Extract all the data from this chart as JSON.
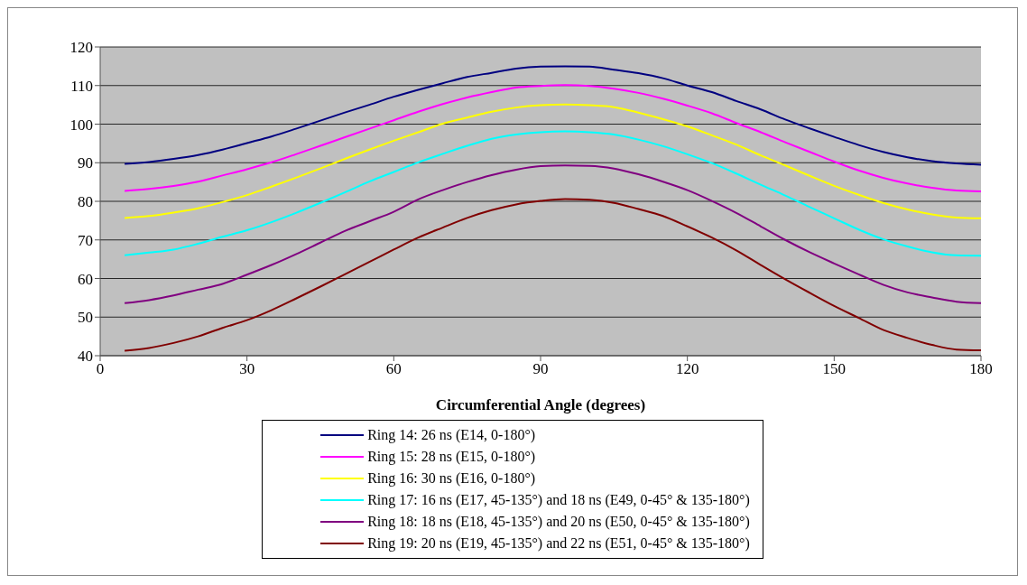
{
  "chart_data": {
    "type": "line",
    "xlabel": "Circumferential Angle (degrees)",
    "x": [
      5,
      10,
      15,
      20,
      25,
      30,
      35,
      40,
      45,
      50,
      55,
      60,
      65,
      70,
      75,
      80,
      85,
      90,
      95,
      100,
      105,
      110,
      115,
      120,
      125,
      130,
      135,
      140,
      145,
      150,
      155,
      160,
      165,
      170,
      175,
      180
    ],
    "series": [
      {
        "name": "Ring 14: 26 ns (E14, 0-180°)",
        "color": "#000080",
        "values": [
          89.7,
          90.2,
          91,
          92,
          93.4,
          95.1,
          96.8,
          98.8,
          100.9,
          103,
          105,
          107.1,
          108.9,
          110.6,
          112.2,
          113.3,
          114.4,
          114.9,
          115,
          114.9,
          114.1,
          113.2,
          111.9,
          110,
          108.3,
          106,
          103.8,
          101.2,
          98.9,
          96.7,
          94.6,
          92.8,
          91.4,
          90.4,
          89.8,
          89.5
        ]
      },
      {
        "name": "Ring 15: 28 ns (E15, 0-180°)",
        "color": "#ff00ff",
        "values": [
          82.7,
          83.2,
          84,
          85.1,
          86.7,
          88.3,
          90.1,
          92.2,
          94.4,
          96.6,
          98.8,
          101,
          103.2,
          105.2,
          106.9,
          108.3,
          109.5,
          109.9,
          110.1,
          109.9,
          109.2,
          108.1,
          106.6,
          104.8,
          102.8,
          100.3,
          97.9,
          95.3,
          92.8,
          90.3,
          88,
          86.1,
          84.6,
          83.5,
          82.8,
          82.6
        ]
      },
      {
        "name": "Ring 16: 30 ns (E16, 0-180°)",
        "color": "#ffff00",
        "values": [
          75.7,
          76.2,
          77.1,
          78.2,
          79.8,
          81.6,
          83.8,
          86.1,
          88.5,
          91,
          93.4,
          95.7,
          97.9,
          100.1,
          101.7,
          103.2,
          104.3,
          104.9,
          105.1,
          104.9,
          104.4,
          103,
          101.3,
          99.4,
          97.1,
          94.7,
          91.9,
          89.3,
          86.6,
          84,
          81.7,
          79.6,
          77.9,
          76.6,
          75.8,
          75.6
        ]
      },
      {
        "name": "Ring 17: 16 ns (E17, 45-135°) and 18 ns (E49, 0-45° & 135-180°)",
        "color": "#00ffff",
        "values": [
          66,
          66.7,
          67.5,
          69,
          70.8,
          72.5,
          74.6,
          77,
          79.6,
          82.3,
          85.1,
          87.6,
          90.1,
          92.3,
          94.4,
          96.2,
          97.3,
          97.9,
          98.1,
          97.9,
          97.3,
          96,
          94.3,
          92.2,
          89.9,
          87.2,
          84.3,
          81.5,
          78.5,
          75.6,
          72.7,
          70.2,
          68.3,
          66.8,
          66,
          65.9
        ]
      },
      {
        "name": "Ring 18: 18 ns (E18, 45-135°) and 20 ns (E50, 0-45° & 135-180°)",
        "color": "#800080",
        "values": [
          53.6,
          54.4,
          55.6,
          57.1,
          58.6,
          61,
          63.5,
          66.3,
          69.3,
          72.3,
          74.8,
          77.3,
          80.5,
          82.9,
          85,
          86.8,
          88.2,
          89.1,
          89.3,
          89.2,
          88.5,
          87,
          85.1,
          82.9,
          80.1,
          77,
          73.5,
          70,
          66.8,
          63.9,
          61.1,
          58.4,
          56.4,
          55.1,
          54,
          53.6
        ]
      },
      {
        "name": "Ring 19: 20 ns (E19, 45-135°) and 22 ns (E51, 0-45° & 135-180°)",
        "color": "#800000",
        "values": [
          41.3,
          42,
          43.3,
          45,
          47.2,
          49.2,
          51.8,
          54.8,
          57.9,
          61.1,
          64.3,
          67.5,
          70.6,
          73.2,
          75.7,
          77.7,
          79.2,
          80.1,
          80.6,
          80.4,
          79.6,
          78,
          76.2,
          73.5,
          70.6,
          67.3,
          63.5,
          59.8,
          56.3,
          52.9,
          49.8,
          46.7,
          44.6,
          42.8,
          41.6,
          41.4
        ]
      }
    ],
    "xlim": [
      0,
      180
    ],
    "xticks": [
      0,
      30,
      60,
      90,
      120,
      150,
      180
    ],
    "ylim": [
      40,
      120
    ],
    "yticks": [
      40,
      50,
      60,
      70,
      80,
      90,
      100,
      110,
      120
    ],
    "grid": "y",
    "legend": "bottom",
    "marker": "none",
    "line_style": "solid"
  }
}
